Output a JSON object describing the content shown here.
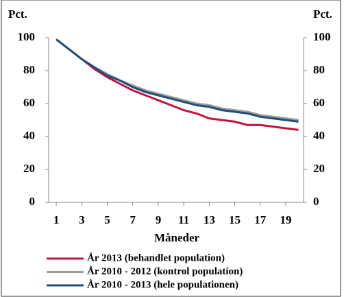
{
  "chart_data": {
    "type": "line",
    "ylabel": "Pct.",
    "xlabel": "Måneder",
    "x": [
      1,
      2,
      3,
      4,
      5,
      6,
      7,
      8,
      9,
      10,
      11,
      12,
      13,
      14,
      15,
      16,
      17,
      18,
      19,
      20
    ],
    "xlim": [
      0.4,
      20.4
    ],
    "xticks": [
      1,
      3,
      5,
      7,
      9,
      11,
      13,
      15,
      17,
      19
    ],
    "ylim": [
      0,
      100
    ],
    "yticks": [
      0,
      20,
      40,
      60,
      80,
      100
    ],
    "series": [
      {
        "name": "År 2013 (behandlet population)",
        "color": "#c0143c",
        "values": [
          99,
          93,
          87,
          81,
          76,
          72,
          68,
          65,
          62,
          59,
          56,
          54,
          51,
          50,
          49,
          47,
          47,
          46,
          45,
          44
        ]
      },
      {
        "name": "År 2010 - 2012 (kontrol population)",
        "color": "#9a9a9a",
        "values": [
          99,
          93,
          87,
          82,
          78,
          74,
          71,
          68,
          66,
          64,
          62,
          60,
          59,
          57,
          56,
          55,
          53,
          52,
          51,
          50
        ]
      },
      {
        "name": "År 2010 - 2013 (hele populationen)",
        "color": "#1f4e79",
        "values": [
          99,
          93,
          87,
          82,
          77,
          74,
          70,
          67,
          65,
          63,
          61,
          59,
          58,
          56,
          55,
          54,
          52,
          51,
          50,
          49
        ]
      }
    ]
  }
}
